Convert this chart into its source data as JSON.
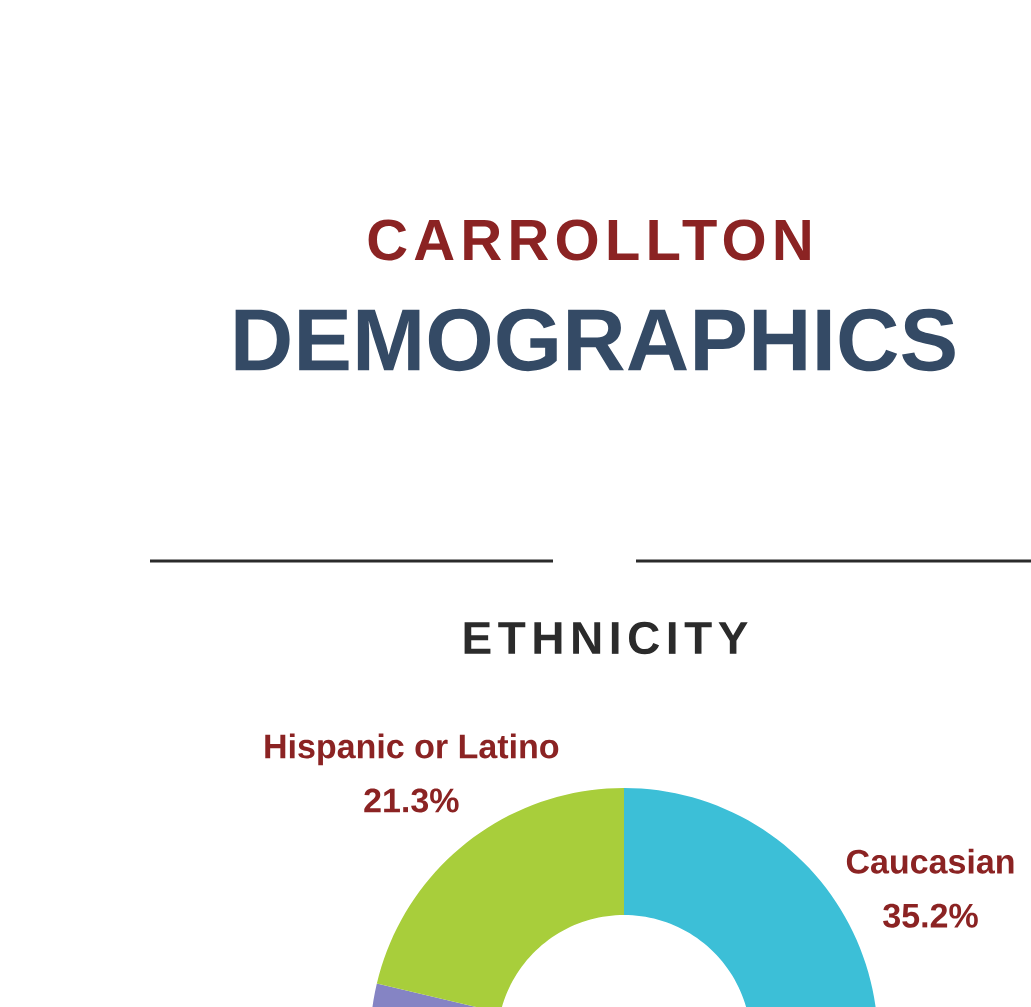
{
  "chart_data": {
    "type": "donut",
    "title": "ETHNICITY",
    "annotations": [
      "CARROLLTON",
      "DEMOGRAPHICS"
    ],
    "categories": [
      "Caucasian",
      null,
      "Hispanic or Latino"
    ],
    "values": [
      35.2,
      43.5,
      21.3
    ],
    "colors": [
      "#3cbfd7",
      "#8584c4",
      "#a8ce3b"
    ],
    "value_labels": [
      "35.2%",
      null,
      "21.3%"
    ]
  }
}
